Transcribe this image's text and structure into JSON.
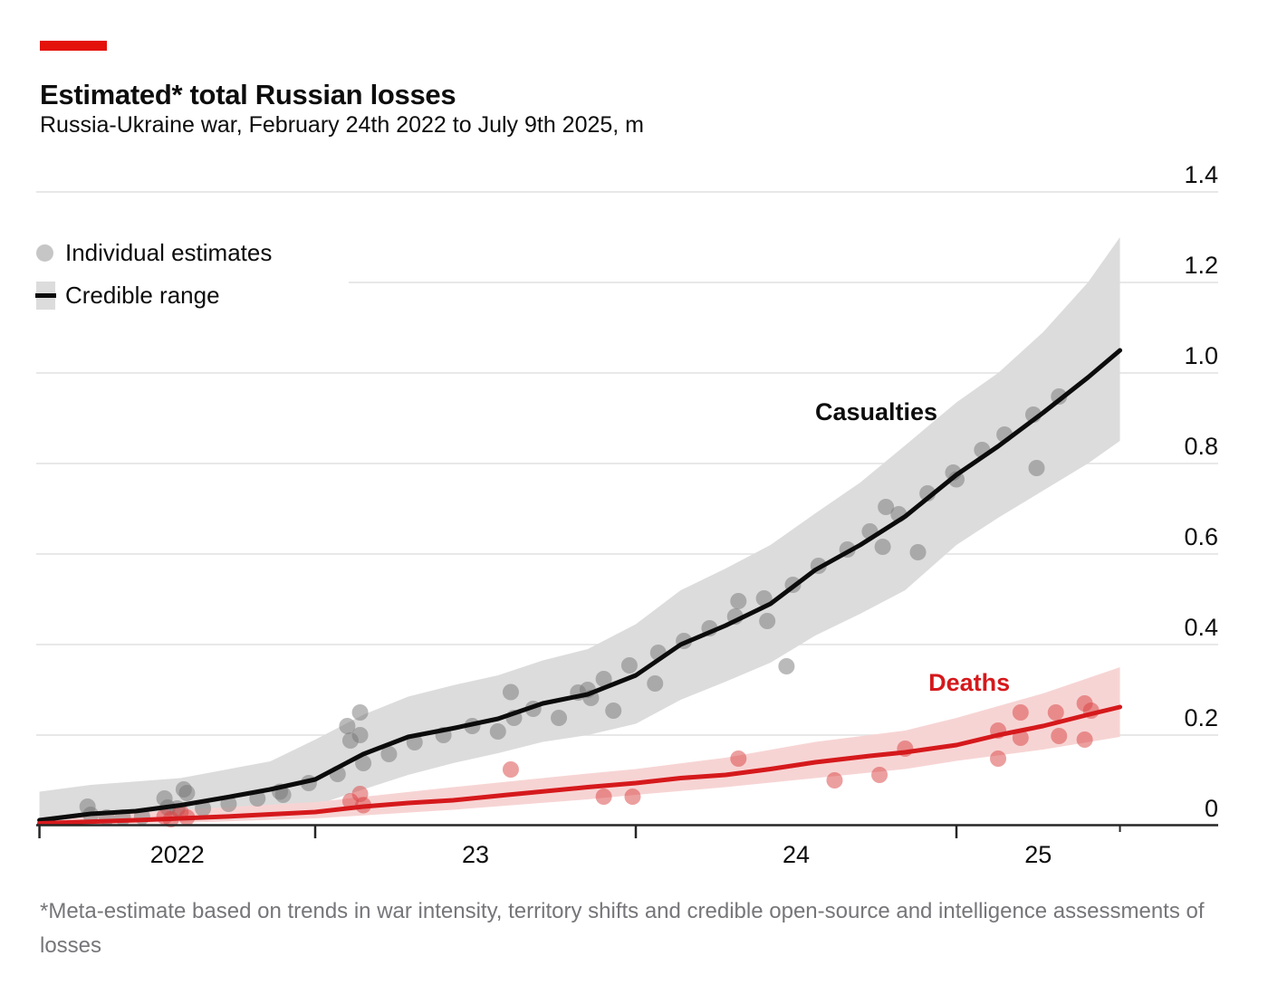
{
  "header": {
    "title": "Estimated* total Russian losses",
    "subtitle": "Russia-Ukraine war, February 24th 2022 to July 9th 2025, m"
  },
  "legend": {
    "individual_estimates_label": "Individual estimates",
    "credible_range_label": "Credible range"
  },
  "footnote": "*Meta-estimate based on trends in war intensity, territory shifts and credible open-source and intelligence assessments of losses",
  "colors": {
    "accent_red": "#e3120b",
    "axis": "#262626",
    "gridline": "#e1e1e1",
    "text_dark": "#0d0d0d",
    "text_gray": "#76767a"
  },
  "chart_data": {
    "type": "line",
    "title": "Estimated* total Russian losses",
    "subtitle": "Russia-Ukraine war, February 24th 2022 to July 9th 2025, m",
    "unit": "m",
    "x_axis": {
      "start_year": 2022.14,
      "end_year": 2025.51,
      "major_ticks": [
        2022.14,
        2023,
        2024,
        2025
      ],
      "minor_ticks": [
        2025.51
      ],
      "labels": [
        {
          "text": "2022",
          "from": 2022.14,
          "to": 2023
        },
        {
          "text": "23",
          "from": 2023,
          "to": 2024
        },
        {
          "text": "24",
          "from": 2024,
          "to": 2025
        },
        {
          "text": "25",
          "from": 2025,
          "to": 2025.51
        }
      ]
    },
    "y_axis": {
      "min": 0,
      "max": 1.4,
      "step": 0.2,
      "tick_labels": [
        "0",
        "0.2",
        "0.4",
        "0.6",
        "0.8",
        "1.0",
        "1.2",
        "1.4"
      ],
      "legend_gap_tick": 1.2
    },
    "series": [
      {
        "name": "Casualties",
        "line_color": "#0c0c0c",
        "band_color": "#dcdcdc",
        "dot_color": "#767676",
        "line": [
          [
            2022.14,
            0.012
          ],
          [
            2022.3,
            0.026
          ],
          [
            2022.44,
            0.032
          ],
          [
            2022.58,
            0.045
          ],
          [
            2022.72,
            0.062
          ],
          [
            2022.86,
            0.08
          ],
          [
            2023.0,
            0.102
          ],
          [
            2023.15,
            0.158
          ],
          [
            2023.29,
            0.196
          ],
          [
            2023.43,
            0.215
          ],
          [
            2023.57,
            0.236
          ],
          [
            2023.71,
            0.27
          ],
          [
            2023.85,
            0.29
          ],
          [
            2024.0,
            0.332
          ],
          [
            2024.14,
            0.4
          ],
          [
            2024.28,
            0.442
          ],
          [
            2024.42,
            0.49
          ],
          [
            2024.56,
            0.565
          ],
          [
            2024.7,
            0.62
          ],
          [
            2024.84,
            0.683
          ],
          [
            2025.0,
            0.775
          ],
          [
            2025.13,
            0.838
          ],
          [
            2025.27,
            0.912
          ],
          [
            2025.41,
            0.99
          ],
          [
            2025.51,
            1.05
          ]
        ],
        "band": [
          [
            2022.14,
            0.0,
            0.075
          ],
          [
            2022.3,
            0.004,
            0.09
          ],
          [
            2022.58,
            0.012,
            0.105
          ],
          [
            2022.86,
            0.03,
            0.142
          ],
          [
            2023.0,
            0.045,
            0.19
          ],
          [
            2023.15,
            0.08,
            0.245
          ],
          [
            2023.29,
            0.112,
            0.285
          ],
          [
            2023.43,
            0.138,
            0.31
          ],
          [
            2023.57,
            0.16,
            0.332
          ],
          [
            2023.71,
            0.185,
            0.365
          ],
          [
            2023.85,
            0.2,
            0.39
          ],
          [
            2024.0,
            0.225,
            0.445
          ],
          [
            2024.14,
            0.278,
            0.52
          ],
          [
            2024.28,
            0.318,
            0.568
          ],
          [
            2024.42,
            0.36,
            0.62
          ],
          [
            2024.56,
            0.42,
            0.69
          ],
          [
            2024.7,
            0.468,
            0.758
          ],
          [
            2024.84,
            0.52,
            0.84
          ],
          [
            2025.0,
            0.62,
            0.935
          ],
          [
            2025.13,
            0.68,
            1.0
          ],
          [
            2025.27,
            0.74,
            1.09
          ],
          [
            2025.41,
            0.8,
            1.2
          ],
          [
            2025.51,
            0.85,
            1.3
          ]
        ],
        "dots": [
          [
            2022.29,
            0.042
          ],
          [
            2022.3,
            0.024
          ],
          [
            2022.35,
            0.018
          ],
          [
            2022.4,
            0.018
          ],
          [
            2022.46,
            0.02
          ],
          [
            2022.53,
            0.06
          ],
          [
            2022.54,
            0.04
          ],
          [
            2022.57,
            0.038
          ],
          [
            2022.59,
            0.08
          ],
          [
            2022.6,
            0.072
          ],
          [
            2022.65,
            0.038
          ],
          [
            2022.73,
            0.048
          ],
          [
            2022.82,
            0.06
          ],
          [
            2022.89,
            0.075
          ],
          [
            2022.9,
            0.068
          ],
          [
            2022.98,
            0.094
          ],
          [
            2023.07,
            0.114
          ],
          [
            2023.1,
            0.22
          ],
          [
            2023.11,
            0.188
          ],
          [
            2023.14,
            0.25
          ],
          [
            2023.14,
            0.2
          ],
          [
            2023.15,
            0.138
          ],
          [
            2023.23,
            0.158
          ],
          [
            2023.31,
            0.184
          ],
          [
            2023.4,
            0.2
          ],
          [
            2023.49,
            0.22
          ],
          [
            2023.57,
            0.208
          ],
          [
            2023.61,
            0.295
          ],
          [
            2023.62,
            0.238
          ],
          [
            2023.68,
            0.258
          ],
          [
            2023.76,
            0.238
          ],
          [
            2023.82,
            0.294
          ],
          [
            2023.85,
            0.3
          ],
          [
            2023.86,
            0.282
          ],
          [
            2023.9,
            0.324
          ],
          [
            2023.93,
            0.254
          ],
          [
            2023.98,
            0.354
          ],
          [
            2024.06,
            0.314
          ],
          [
            2024.07,
            0.382
          ],
          [
            2024.15,
            0.408
          ],
          [
            2024.23,
            0.436
          ],
          [
            2024.31,
            0.462
          ],
          [
            2024.32,
            0.496
          ],
          [
            2024.4,
            0.502
          ],
          [
            2024.41,
            0.452
          ],
          [
            2024.47,
            0.352
          ],
          [
            2024.49,
            0.532
          ],
          [
            2024.57,
            0.574
          ],
          [
            2024.66,
            0.61
          ],
          [
            2024.73,
            0.65
          ],
          [
            2024.77,
            0.616
          ],
          [
            2024.78,
            0.704
          ],
          [
            2024.82,
            0.688
          ],
          [
            2024.88,
            0.604
          ],
          [
            2024.91,
            0.734
          ],
          [
            2024.99,
            0.78
          ],
          [
            2025.0,
            0.765
          ],
          [
            2025.08,
            0.83
          ],
          [
            2025.15,
            0.864
          ],
          [
            2025.24,
            0.908
          ],
          [
            2025.25,
            0.79
          ],
          [
            2025.32,
            0.948
          ]
        ]
      },
      {
        "name": "Deaths",
        "line_color": "#d5191c",
        "band_color": "#f7d4d4",
        "dot_color": "#d94040",
        "line": [
          [
            2022.14,
            0.005
          ],
          [
            2022.44,
            0.012
          ],
          [
            2022.72,
            0.02
          ],
          [
            2023.0,
            0.03
          ],
          [
            2023.15,
            0.042
          ],
          [
            2023.29,
            0.05
          ],
          [
            2023.43,
            0.056
          ],
          [
            2023.6,
            0.068
          ],
          [
            2023.85,
            0.085
          ],
          [
            2024.0,
            0.094
          ],
          [
            2024.14,
            0.105
          ],
          [
            2024.28,
            0.112
          ],
          [
            2024.42,
            0.125
          ],
          [
            2024.56,
            0.14
          ],
          [
            2024.73,
            0.154
          ],
          [
            2024.84,
            0.162
          ],
          [
            2025.0,
            0.178
          ],
          [
            2025.13,
            0.2
          ],
          [
            2025.27,
            0.22
          ],
          [
            2025.41,
            0.245
          ],
          [
            2025.51,
            0.262
          ]
        ],
        "band": [
          [
            2022.14,
            0.0,
            0.012
          ],
          [
            2022.58,
            0.006,
            0.035
          ],
          [
            2023.0,
            0.016,
            0.052
          ],
          [
            2023.43,
            0.035,
            0.085
          ],
          [
            2023.85,
            0.058,
            0.115
          ],
          [
            2024.0,
            0.068,
            0.125
          ],
          [
            2024.28,
            0.085,
            0.15
          ],
          [
            2024.56,
            0.105,
            0.185
          ],
          [
            2024.84,
            0.125,
            0.21
          ],
          [
            2025.0,
            0.143,
            0.238
          ],
          [
            2025.27,
            0.168,
            0.292
          ],
          [
            2025.51,
            0.196,
            0.35
          ]
        ],
        "dots": [
          [
            2022.53,
            0.02
          ],
          [
            2022.55,
            0.014
          ],
          [
            2022.58,
            0.03
          ],
          [
            2022.6,
            0.018
          ],
          [
            2023.11,
            0.054
          ],
          [
            2023.14,
            0.07
          ],
          [
            2023.15,
            0.045
          ],
          [
            2023.61,
            0.124
          ],
          [
            2023.9,
            0.064
          ],
          [
            2023.99,
            0.064
          ],
          [
            2024.32,
            0.148
          ],
          [
            2024.62,
            0.1
          ],
          [
            2024.76,
            0.112
          ],
          [
            2024.84,
            0.17
          ],
          [
            2025.13,
            0.21
          ],
          [
            2025.13,
            0.148
          ],
          [
            2025.2,
            0.25
          ],
          [
            2025.2,
            0.194
          ],
          [
            2025.31,
            0.25
          ],
          [
            2025.32,
            0.198
          ],
          [
            2025.4,
            0.27
          ],
          [
            2025.4,
            0.19
          ],
          [
            2025.42,
            0.254
          ]
        ]
      }
    ],
    "annotations": [
      {
        "text": "Casualties",
        "year": 2024.75,
        "value": 0.914,
        "color": "#0d0d0d"
      },
      {
        "text": "Deaths",
        "year": 2025.04,
        "value": 0.316,
        "color": "#d5191c"
      }
    ]
  }
}
